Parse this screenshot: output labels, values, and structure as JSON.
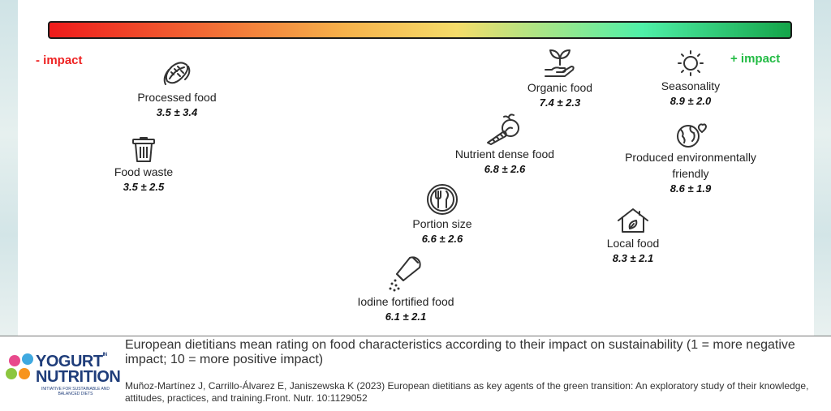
{
  "scale": {
    "minus_label": "- impact",
    "plus_label": "+ impact",
    "colors": [
      "#ee1b1b",
      "#f6b24b",
      "#f5dc6a",
      "#4ff0a8",
      "#14a449"
    ],
    "minus_color": "#ee2222",
    "plus_color": "#22bb44"
  },
  "items": [
    {
      "id": "processed-food",
      "name": "Processed food",
      "score": "3.5 ± 3.4",
      "icon": "hotdog-icon"
    },
    {
      "id": "food-waste",
      "name": "Food waste",
      "score": "3.5 ± 2.5",
      "icon": "trash-bin-icon"
    },
    {
      "id": "organic-food",
      "name": "Organic food",
      "score": "7.4 ± 2.3",
      "icon": "hand-plant-icon"
    },
    {
      "id": "seasonality",
      "name": "Seasonality",
      "score": "8.9 ± 2.0",
      "icon": "sun-icon"
    },
    {
      "id": "nutrient-dense-food",
      "name": "Nutrient dense food",
      "score": "6.8 ± 2.6",
      "icon": "vegetables-icon"
    },
    {
      "id": "produced-environmentally-friendly",
      "name": "Produced environmentally friendly",
      "score": "8.6 ± 1.9",
      "icon": "earth-heart-icon"
    },
    {
      "id": "portion-size",
      "name": "Portion size",
      "score": "6.6 ± 2.6",
      "icon": "plate-cutlery-icon"
    },
    {
      "id": "local-food",
      "name": "Local food",
      "score": "8.3 ± 2.1",
      "icon": "house-leaf-icon"
    },
    {
      "id": "iodine-fortified-food",
      "name": "Iodine fortified food",
      "score": "6.1 ± 2.1",
      "icon": "salt-shaker-icon"
    }
  ],
  "footer": {
    "caption": "European dietitians mean rating on food characteristics according to their impact on sustainability (1 = more negative impact; 10 = more positive impact)",
    "citation": "Muñoz-Martínez J, Carrillo-Álvarez E, Janiszewska K (2023) European dietitians as key agents of the green transition: An exploratory study of their knowledge, attitudes, practices, and training.Front. Nutr. 10:1129052",
    "logo": {
      "line1": "YOGURT",
      "line1_sup": "IN",
      "line2": "NUTRITION",
      "tagline": "INITIATIVE FOR SUSTAINABLE AND BALANCED DIETS"
    }
  }
}
